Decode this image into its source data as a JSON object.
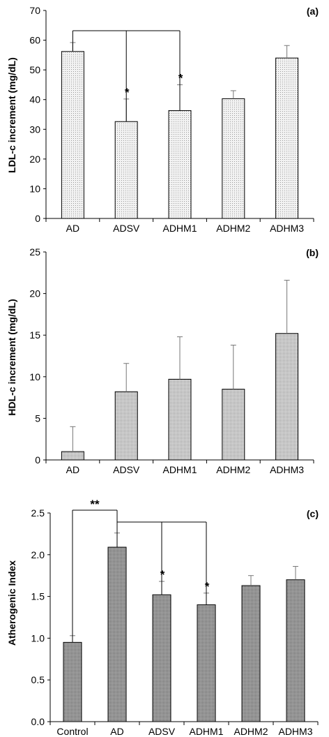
{
  "chart_data": [
    {
      "type": "bar",
      "panel_label": "(a)",
      "ylabel": "LDL-c increment (mg/dL)",
      "xlabel": "",
      "categories": [
        "AD",
        "ADSV",
        "ADHM1",
        "ADHM2",
        "ADHM3"
      ],
      "values": [
        56.2,
        32.6,
        36.3,
        40.3,
        54.0
      ],
      "errors": [
        3.0,
        7.6,
        8.7,
        2.7,
        4.2
      ],
      "ylim": [
        0,
        70
      ],
      "yticks": [
        "0",
        "10",
        "20",
        "30",
        "40",
        "50",
        "60",
        "70"
      ],
      "significance": [
        {
          "category": "ADSV",
          "label": "*"
        },
        {
          "category": "ADHM1",
          "label": "*"
        }
      ],
      "brackets": [
        {
          "from": "AD",
          "to": [
            "ADSV",
            "ADHM1"
          ]
        }
      ],
      "bar_fill": "#e6e6e6",
      "grid": false,
      "legend": "none"
    },
    {
      "type": "bar",
      "panel_label": "(b)",
      "ylabel": "HDL-c increment (mg/dL)",
      "xlabel": "",
      "categories": [
        "AD",
        "ADSV",
        "ADHM1",
        "ADHM2",
        "ADHM3"
      ],
      "values": [
        1.0,
        8.2,
        9.7,
        8.5,
        15.2
      ],
      "errors": [
        3.0,
        3.4,
        5.1,
        5.3,
        6.4
      ],
      "ylim": [
        0,
        25
      ],
      "yticks": [
        "0",
        "5",
        "10",
        "15",
        "20",
        "25"
      ],
      "significance": [],
      "brackets": [],
      "bar_fill": "#c8c8c8",
      "grid": false,
      "legend": "none"
    },
    {
      "type": "bar",
      "panel_label": "(c)",
      "ylabel": "Atherogenic Index",
      "xlabel": "",
      "categories": [
        "Control",
        "AD",
        "ADSV",
        "ADHM1",
        "ADHM2",
        "ADHM3"
      ],
      "values": [
        0.95,
        2.09,
        1.52,
        1.4,
        1.63,
        1.7
      ],
      "errors": [
        0.08,
        0.17,
        0.16,
        0.14,
        0.12,
        0.16
      ],
      "ylim": [
        0,
        2.5
      ],
      "yticks": [
        "0.0",
        "0.5",
        "1.0",
        "1.5",
        "2.0",
        "2.5"
      ],
      "significance": [
        {
          "category": "ADSV",
          "label": "*"
        },
        {
          "category": "ADHM1",
          "label": "*"
        }
      ],
      "brackets": [
        {
          "from": "Control",
          "to": [
            "AD"
          ],
          "label": "**"
        },
        {
          "from": "AD",
          "to": [
            "ADSV",
            "ADHM1"
          ]
        }
      ],
      "bar_fill": "#8c8c8c",
      "grid": false,
      "legend": "none"
    }
  ]
}
